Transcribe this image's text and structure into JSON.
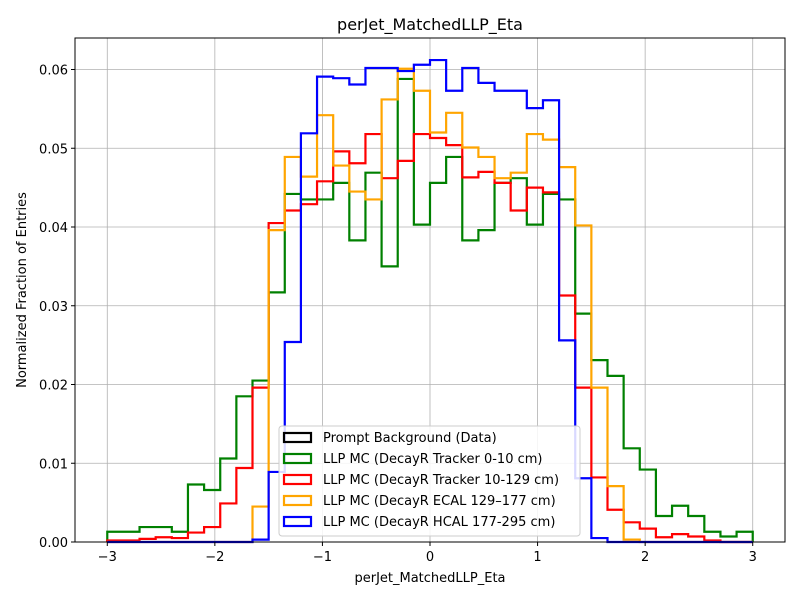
{
  "chart_data": {
    "type": "step-histogram",
    "title": "perJet_MatchedLLP_Eta",
    "xlabel": "perJet_MatchedLLP_Eta",
    "ylabel": "Normalized Fraction of Entries",
    "xlim": [
      -3.3,
      3.3
    ],
    "ylim": [
      0,
      0.064
    ],
    "xticks": [
      -3,
      -2,
      -1,
      0,
      1,
      2,
      3
    ],
    "yticks": [
      0.0,
      0.01,
      0.02,
      0.03,
      0.04,
      0.05,
      0.06
    ],
    "ytick_labels": [
      "0.00",
      "0.01",
      "0.02",
      "0.03",
      "0.04",
      "0.05",
      "0.06"
    ],
    "grid": true,
    "legend_position": "lower-center",
    "bin_edges": [
      -3.0,
      -2.85,
      -2.7,
      -2.55,
      -2.4,
      -2.25,
      -2.1,
      -1.95,
      -1.8,
      -1.65,
      -1.5,
      -1.35,
      -1.2,
      -1.05,
      -0.9,
      -0.75,
      -0.6,
      -0.45,
      -0.3,
      -0.15,
      0.0,
      0.15,
      0.3,
      0.45,
      0.6,
      0.75,
      0.9,
      1.05,
      1.2,
      1.35,
      1.5,
      1.65,
      1.8,
      1.95,
      2.1,
      2.25,
      2.4,
      2.55,
      2.7,
      2.85,
      3.0
    ],
    "series": [
      {
        "name": "Prompt Background (Data)",
        "color": "#000000",
        "values": []
      },
      {
        "name": "LLP MC (DecayR Tracker 0-10 cm)",
        "color": "#008000",
        "values": [
          0.0013,
          0.0013,
          0.0019,
          0.0019,
          0.0013,
          0.0073,
          0.0066,
          0.0106,
          0.0185,
          0.0205,
          0.0317,
          0.0442,
          0.0435,
          0.0435,
          0.0456,
          0.0383,
          0.0469,
          0.035,
          0.0588,
          0.0403,
          0.0456,
          0.0489,
          0.0383,
          0.0396,
          0.0456,
          0.0462,
          0.0403,
          0.0442,
          0.0435,
          0.029,
          0.0231,
          0.0211,
          0.0119,
          0.0092,
          0.0033,
          0.0046,
          0.0033,
          0.0013,
          0.0007,
          0.0013
        ]
      },
      {
        "name": "LLP MC (DecayR Tracker 10-129 cm)",
        "color": "#ff0000",
        "values": [
          0.0002,
          0.0002,
          0.0004,
          0.0006,
          0.0005,
          0.0012,
          0.0019,
          0.0049,
          0.0094,
          0.0196,
          0.0405,
          0.0421,
          0.0429,
          0.0458,
          0.0496,
          0.0481,
          0.0518,
          0.0462,
          0.0484,
          0.0518,
          0.0513,
          0.0504,
          0.0463,
          0.047,
          0.0456,
          0.0421,
          0.045,
          0.0444,
          0.0313,
          0.0196,
          0.0082,
          0.0041,
          0.0025,
          0.0017,
          0.0006,
          0.001,
          0.0007,
          0.0002,
          0.0,
          0.0
        ]
      },
      {
        "name": "LLP MC (DecayR ECAL 129–177 cm)",
        "color": "#ffa500",
        "values": [
          0.0,
          0.0,
          0.0,
          0.0,
          0.0,
          0.0,
          0.0,
          0.0,
          0.0,
          0.0045,
          0.0396,
          0.0489,
          0.0464,
          0.0542,
          0.0478,
          0.0445,
          0.0435,
          0.0562,
          0.0601,
          0.0573,
          0.052,
          0.0545,
          0.0501,
          0.0489,
          0.0462,
          0.0469,
          0.0518,
          0.0511,
          0.0476,
          0.0402,
          0.0196,
          0.0071,
          0.0003,
          0.0,
          0.0,
          0.0,
          0.0,
          0.0,
          0.0,
          0.0
        ]
      },
      {
        "name": "LLP MC (DecayR HCAL 177-295 cm)",
        "color": "#0000ff",
        "values": [
          0.0,
          0.0,
          0.0,
          0.0,
          0.0,
          0.0,
          0.0,
          0.0,
          0.0,
          0.0003,
          0.0089,
          0.0254,
          0.0519,
          0.0591,
          0.0589,
          0.0581,
          0.0602,
          0.0602,
          0.0598,
          0.0606,
          0.0612,
          0.0573,
          0.0602,
          0.0583,
          0.0573,
          0.0573,
          0.0551,
          0.0561,
          0.0256,
          0.0081,
          0.0005,
          0.0,
          0.0,
          0.0,
          0.0,
          0.0,
          0.0,
          0.0,
          0.0,
          0.0
        ]
      }
    ]
  }
}
